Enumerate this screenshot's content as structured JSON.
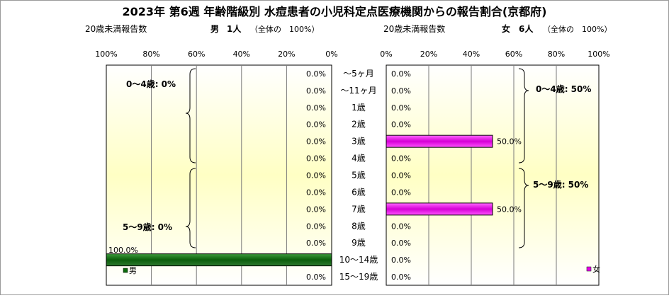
{
  "title": "2023年 第6週 年齢階級別 水痘患者の小児科定点医療機関からの報告割合(京都府)",
  "colors": {
    "male": "#0a6a0a",
    "female": "#e800e8",
    "grid": "#7a7a7a"
  },
  "chart_data": [
    {
      "type": "bar",
      "orientation": "horizontal",
      "direction": "right-to-left",
      "title": "",
      "under20_label": "20歳未満報告数",
      "summary": {
        "sex": "男",
        "count": "1人",
        "share": "（全体の　100%）"
      },
      "legend": {
        "label": "男",
        "position": "bottom-left"
      },
      "xaxis": {
        "min": 0,
        "max": 100,
        "ticks": [
          "100%",
          "80%",
          "60%",
          "40%",
          "20%",
          "0%"
        ]
      },
      "series": [
        {
          "name": "男",
          "values": [
            0,
            0,
            0,
            0,
            0,
            0,
            0,
            0,
            0,
            0,
            0,
            100,
            0
          ]
        }
      ],
      "data_labels": [
        "0.0%",
        "0.0%",
        "0.0%",
        "0.0%",
        "0.0%",
        "0.0%",
        "0.0%",
        "0.0%",
        "0.0%",
        "0.0%",
        "0.0%",
        "100.0%",
        "0.0%"
      ],
      "groups": [
        {
          "label": "0～4歳: 0%",
          "from": 0,
          "to": 5
        },
        {
          "label": "5～9歳: 0%",
          "from": 6,
          "to": 10
        }
      ],
      "grid": true
    },
    {
      "type": "bar",
      "orientation": "horizontal",
      "direction": "left-to-right",
      "title": "",
      "under20_label": "20歳未満報告数",
      "summary": {
        "sex": "女",
        "count": "6人",
        "share": "（全体の　100%）"
      },
      "legend": {
        "label": "女",
        "position": "bottom-right"
      },
      "xaxis": {
        "min": 0,
        "max": 100,
        "ticks": [
          "0%",
          "20%",
          "40%",
          "60%",
          "80%",
          "100%"
        ]
      },
      "series": [
        {
          "name": "女",
          "values": [
            0,
            0,
            0,
            0,
            50,
            0,
            0,
            0,
            50,
            0,
            0,
            0,
            0
          ]
        }
      ],
      "data_labels": [
        "0.0%",
        "0.0%",
        "0.0%",
        "0.0%",
        "50.0%",
        "0.0%",
        "0.0%",
        "0.0%",
        "50.0%",
        "0.0%",
        "0.0%",
        "0.0%",
        "0.0%"
      ],
      "groups": [
        {
          "label": "0～4歳: 50%",
          "from": 0,
          "to": 5
        },
        {
          "label": "5～9歳: 50%",
          "from": 6,
          "to": 10
        }
      ],
      "grid": true
    }
  ],
  "categories": [
    "～5ヶ月",
    "～11ヶ月",
    "1歳",
    "2歳",
    "3歳",
    "4歳",
    "5歳",
    "6歳",
    "7歳",
    "8歳",
    "9歳",
    "10～14歳",
    "15～19歳"
  ]
}
